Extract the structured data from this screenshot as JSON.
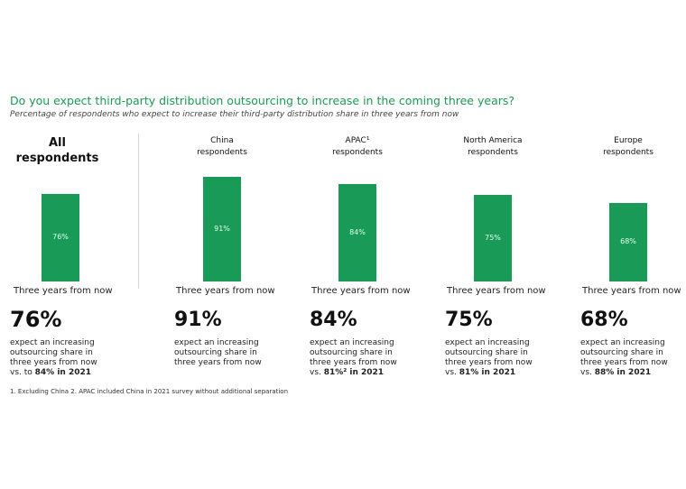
{
  "chart_data": {
    "type": "bar",
    "title": "Do you expect third-party distribution outsourcing to increase in the coming three years?",
    "subtitle": "Percentage of respondents who expect to increase their third-party distribution share in three years from now",
    "ylim": [
      0,
      100
    ],
    "categories": [
      "All respondents",
      "China respondents",
      "APAC¹ respondents",
      "North America respondents",
      "Europe respondents"
    ],
    "values": [
      76,
      91,
      84,
      75,
      68
    ],
    "bar_labels": [
      "76%",
      "91%",
      "84%",
      "75%",
      "68%"
    ],
    "x_tick_label": "Three years from now",
    "bar_color": "#1a9a57"
  },
  "panels": [
    {
      "head": "All respondents",
      "pct": "76%",
      "desc": [
        "expect an increasing",
        "outsourcing share in",
        "three years from now"
      ],
      "compare_prefix": "vs. to ",
      "compare_value": "84% in 2021"
    },
    {
      "head": "China respondents",
      "pct": "91%",
      "desc": [
        "expect an increasing",
        "outsourcing share in",
        "three years from now"
      ],
      "compare_prefix": "",
      "compare_value": ""
    },
    {
      "head": "APAC¹ respondents",
      "pct": "84%",
      "desc": [
        "expect an increasing",
        "outsourcing share in",
        "three years from now"
      ],
      "compare_prefix": "vs. ",
      "compare_value": "81%² in 2021"
    },
    {
      "head": "North America respondents",
      "pct": "75%",
      "desc": [
        "expect an increasing",
        "outsourcing share in",
        "three years from now"
      ],
      "compare_prefix": "vs. ",
      "compare_value": "81% in 2021"
    },
    {
      "head": "Europe respondents",
      "pct": "68%",
      "desc": [
        "expect an increasing",
        "outsourcing share in",
        "three years from now"
      ],
      "compare_prefix": "vs. ",
      "compare_value": "88% in 2021"
    }
  ],
  "footnote": "1. Excluding China  2. APAC included  China in 2021 survey without additional separation"
}
